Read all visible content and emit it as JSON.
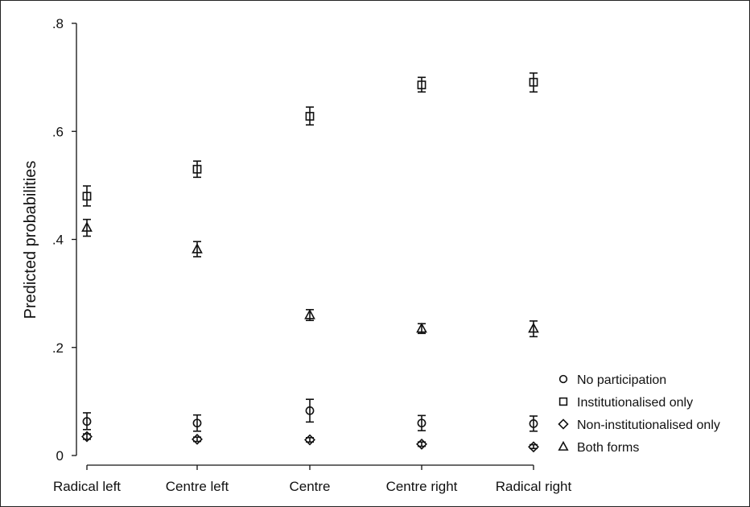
{
  "chart_data": {
    "type": "scatter",
    "ylabel": "Predicted probabilities",
    "xlabel": "",
    "categories": [
      "Radical left",
      "Centre left",
      "Centre",
      "Centre right",
      "Radical right"
    ],
    "y_ticks": [
      0,
      0.2,
      0.4,
      0.6,
      0.8
    ],
    "y_tick_labels": [
      "0",
      ".2",
      ".4",
      ".6",
      ".8"
    ],
    "ylim": [
      0,
      0.8
    ],
    "grid": false,
    "legend_position": "bottom-right",
    "error_bars": true,
    "series": [
      {
        "name": "No participation",
        "marker": "circle",
        "values": [
          0.063,
          0.06,
          0.083,
          0.06,
          0.059
        ],
        "lower": [
          0.048,
          0.045,
          0.062,
          0.046,
          0.045
        ],
        "upper": [
          0.079,
          0.075,
          0.104,
          0.074,
          0.073
        ]
      },
      {
        "name": "Institutionalised only",
        "marker": "square",
        "values": [
          0.48,
          0.53,
          0.628,
          0.686,
          0.691
        ],
        "lower": [
          0.462,
          0.515,
          0.612,
          0.673,
          0.673
        ],
        "upper": [
          0.499,
          0.545,
          0.645,
          0.7,
          0.708
        ]
      },
      {
        "name": "Non-institutionalised only",
        "marker": "diamond",
        "values": [
          0.035,
          0.03,
          0.029,
          0.021,
          0.016
        ],
        "lower": [
          0.03,
          0.026,
          0.025,
          0.017,
          0.013
        ],
        "upper": [
          0.04,
          0.034,
          0.033,
          0.025,
          0.02
        ]
      },
      {
        "name": "Both forms",
        "marker": "triangle",
        "values": [
          0.422,
          0.382,
          0.26,
          0.235,
          0.235
        ],
        "lower": [
          0.406,
          0.368,
          0.25,
          0.226,
          0.22
        ],
        "upper": [
          0.437,
          0.396,
          0.27,
          0.244,
          0.249
        ]
      }
    ]
  }
}
